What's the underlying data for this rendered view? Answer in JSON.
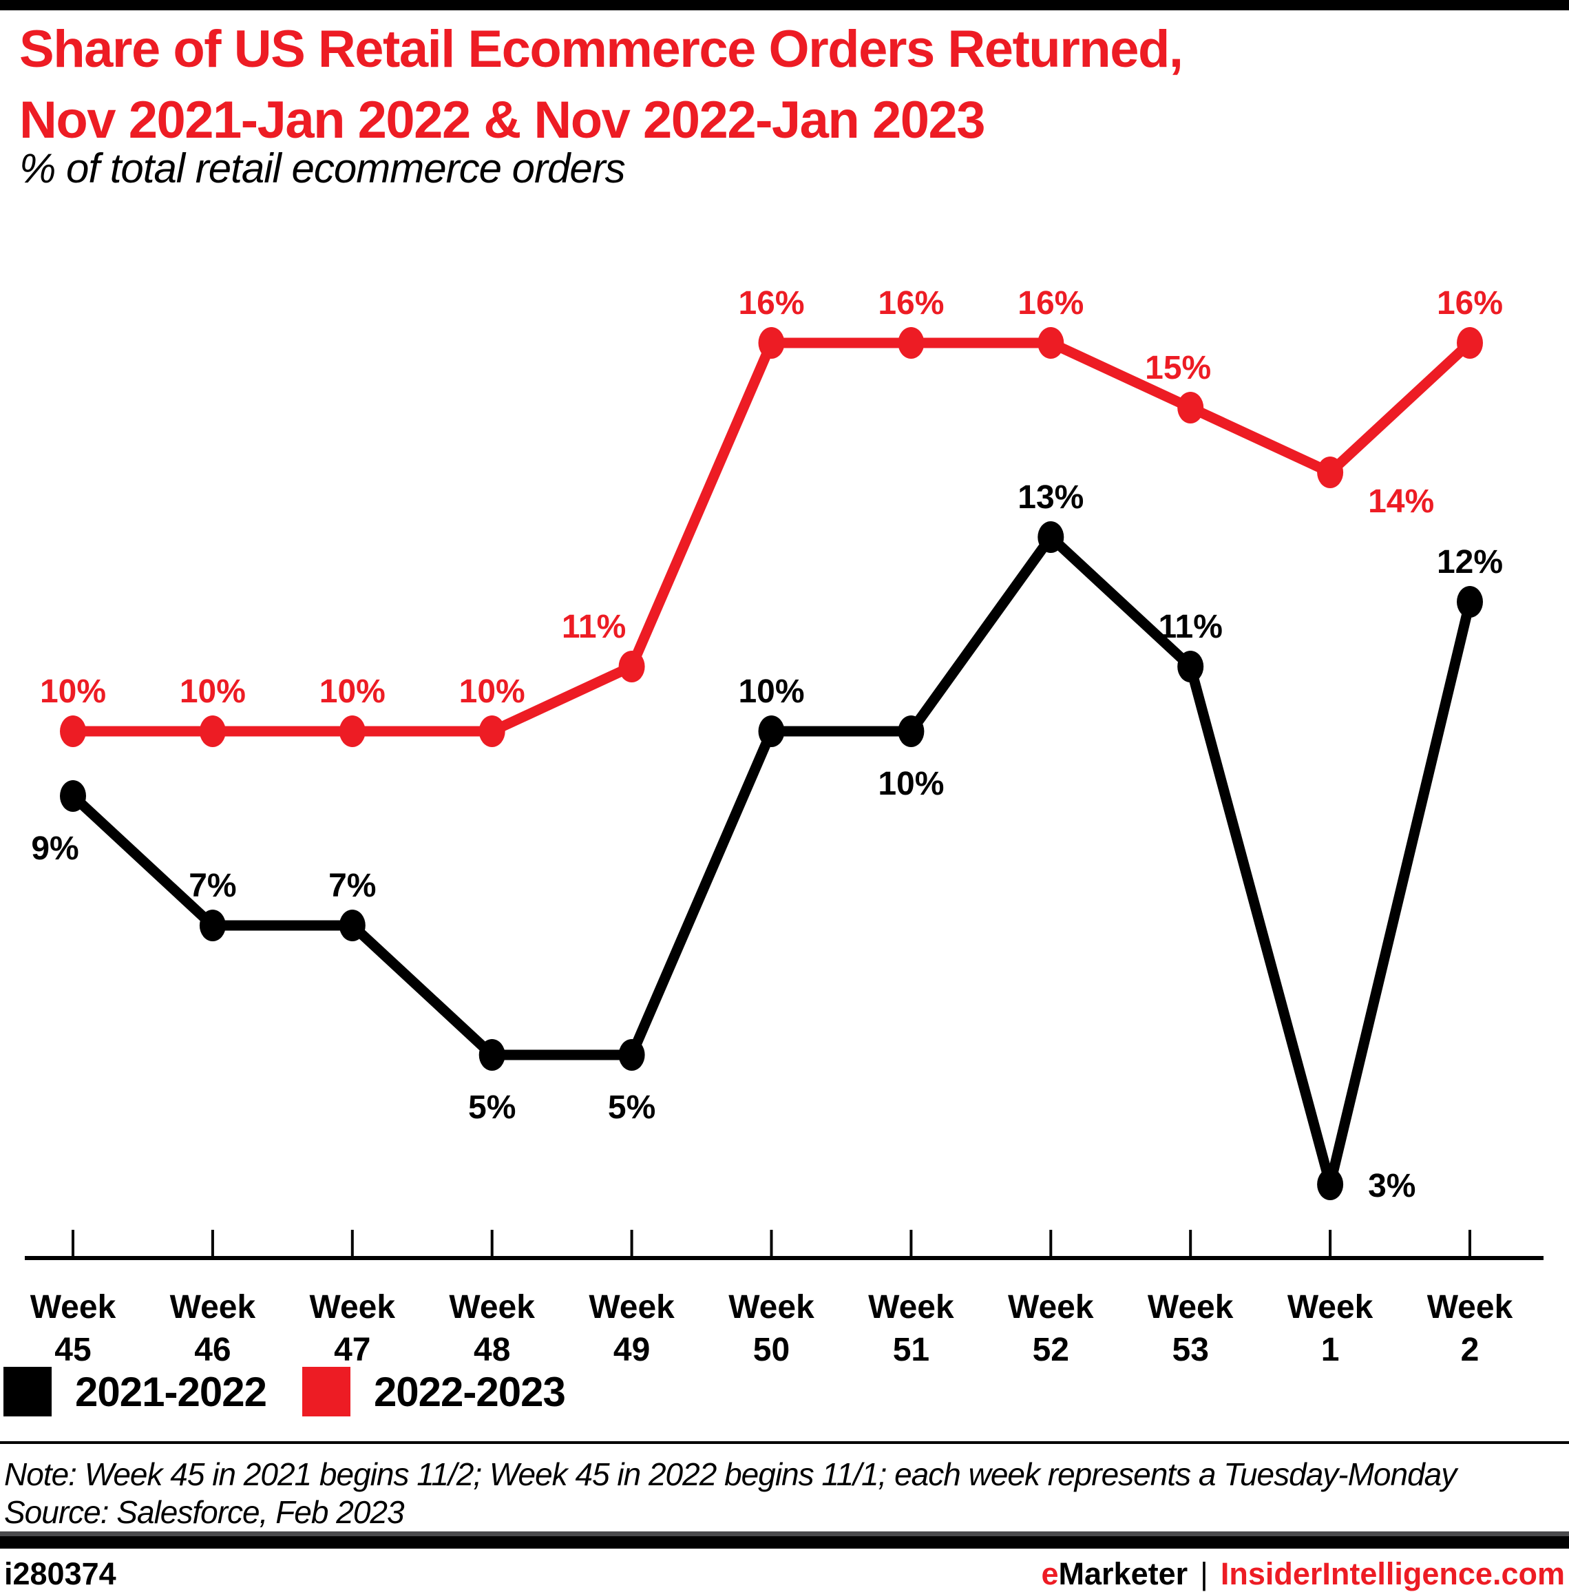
{
  "title": {
    "line1": "Share of US Retail Ecommerce Orders Returned,",
    "line2": "Nov 2021-Jan 2022 & Nov 2022-Jan 2023",
    "subtitle": "% of total retail ecommerce orders"
  },
  "chart_data": {
    "type": "line",
    "title": "Share of US Retail Ecommerce Orders Returned, Nov 2021-Jan 2022 & Nov 2022-Jan 2023",
    "subtitle": "% of total retail ecommerce orders",
    "categories": [
      "Week 45",
      "Week 46",
      "Week 47",
      "Week 48",
      "Week 49",
      "Week 50",
      "Week 51",
      "Week 52",
      "Week 53",
      "Week 1",
      "Week 2"
    ],
    "series": [
      {
        "name": "2021-2022",
        "color": "#000000",
        "values": [
          9,
          7,
          7,
          5,
          5,
          10,
          10,
          13,
          11,
          3,
          12
        ]
      },
      {
        "name": "2022-2023",
        "color": "#ED1C24",
        "values": [
          10,
          10,
          10,
          10,
          11,
          16,
          16,
          16,
          15,
          14,
          16
        ]
      }
    ],
    "unit": "%",
    "ylim": [
      0,
      18
    ],
    "grid": false,
    "data_labels": true,
    "legend_position": "bottom-left",
    "xlabel": "",
    "ylabel": ""
  },
  "note": "Note: Week 45 in 2021 begins 11/2; Week 45 in 2022 begins 11/1; each week represents a Tuesday-Monday",
  "source": "Source: Salesforce, Feb 2023",
  "footer": {
    "id": "i280374",
    "brand_e": "e",
    "brand_marketer": "Marketer",
    "separator": "|",
    "site": "InsiderIntelligence.com"
  }
}
